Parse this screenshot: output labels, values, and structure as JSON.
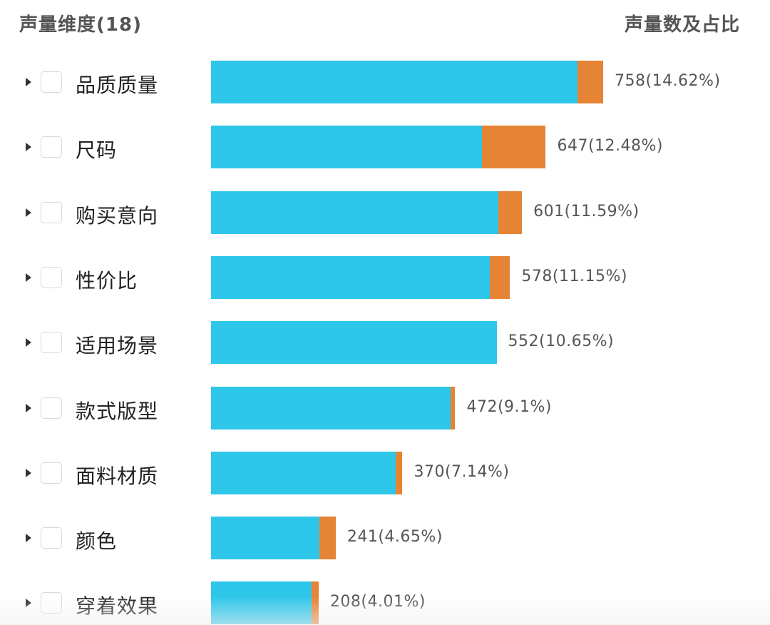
{
  "header": {
    "left_title": "声量维度(18)",
    "right_title": "声量数及占比"
  },
  "colors": {
    "primary_segment": "#2ec7ea",
    "secondary_segment": "#e58434"
  },
  "icons": {
    "row_expand": "caret-right-icon",
    "row_select": "checkbox"
  },
  "rows": [
    {
      "label": "品质质量",
      "count": 758,
      "percent": 14.62,
      "value_text": "758(14.62%)",
      "secondary_share": 0.065
    },
    {
      "label": "尺码",
      "count": 647,
      "percent": 12.48,
      "value_text": "647(12.48%)",
      "secondary_share": 0.19
    },
    {
      "label": "购买意向",
      "count": 601,
      "percent": 11.59,
      "value_text": "601(11.59%)",
      "secondary_share": 0.076
    },
    {
      "label": "性价比",
      "count": 578,
      "percent": 11.15,
      "value_text": "578(11.15%)",
      "secondary_share": 0.068
    },
    {
      "label": "适用场景",
      "count": 552,
      "percent": 10.65,
      "value_text": "552(10.65%)",
      "secondary_share": 0.0
    },
    {
      "label": "款式版型",
      "count": 472,
      "percent": 9.1,
      "value_text": "472(9.1%)",
      "secondary_share": 0.02
    },
    {
      "label": "面料材质",
      "count": 370,
      "percent": 7.14,
      "value_text": "370(7.14%)",
      "secondary_share": 0.037
    },
    {
      "label": "颜色",
      "count": 241,
      "percent": 4.65,
      "value_text": "241(4.65%)",
      "secondary_share": 0.13
    },
    {
      "label": "穿着效果",
      "count": 208,
      "percent": 4.01,
      "value_text": "208(4.01%)",
      "secondary_share": 0.065
    }
  ]
}
